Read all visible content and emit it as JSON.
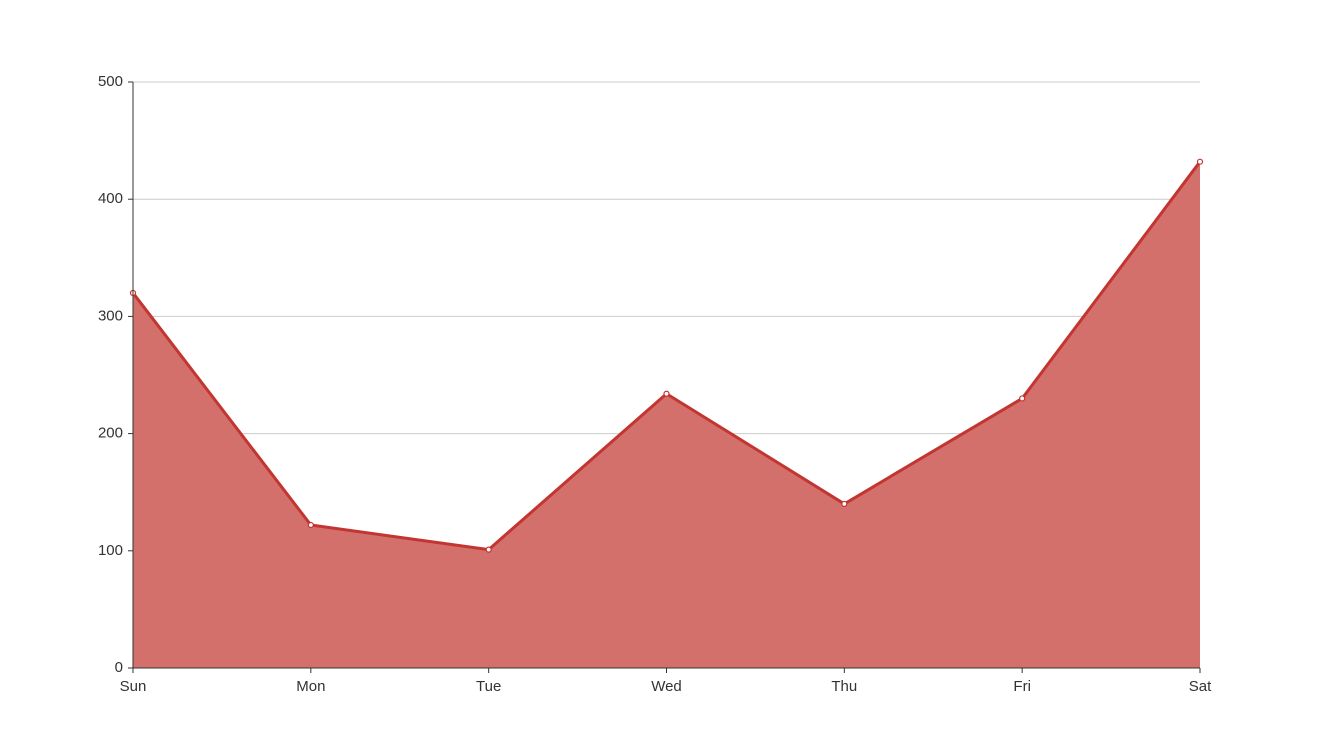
{
  "chart_data": {
    "type": "area",
    "categories": [
      "Sun",
      "Mon",
      "Tue",
      "Wed",
      "Thu",
      "Fri",
      "Sat"
    ],
    "values": [
      320,
      122,
      101,
      234,
      140,
      230,
      432
    ],
    "color": "#c23531",
    "fill": "#d4706b",
    "ylim": [
      0,
      500
    ],
    "yticks": [
      0,
      100,
      200,
      300,
      400,
      500
    ],
    "grid": true
  }
}
